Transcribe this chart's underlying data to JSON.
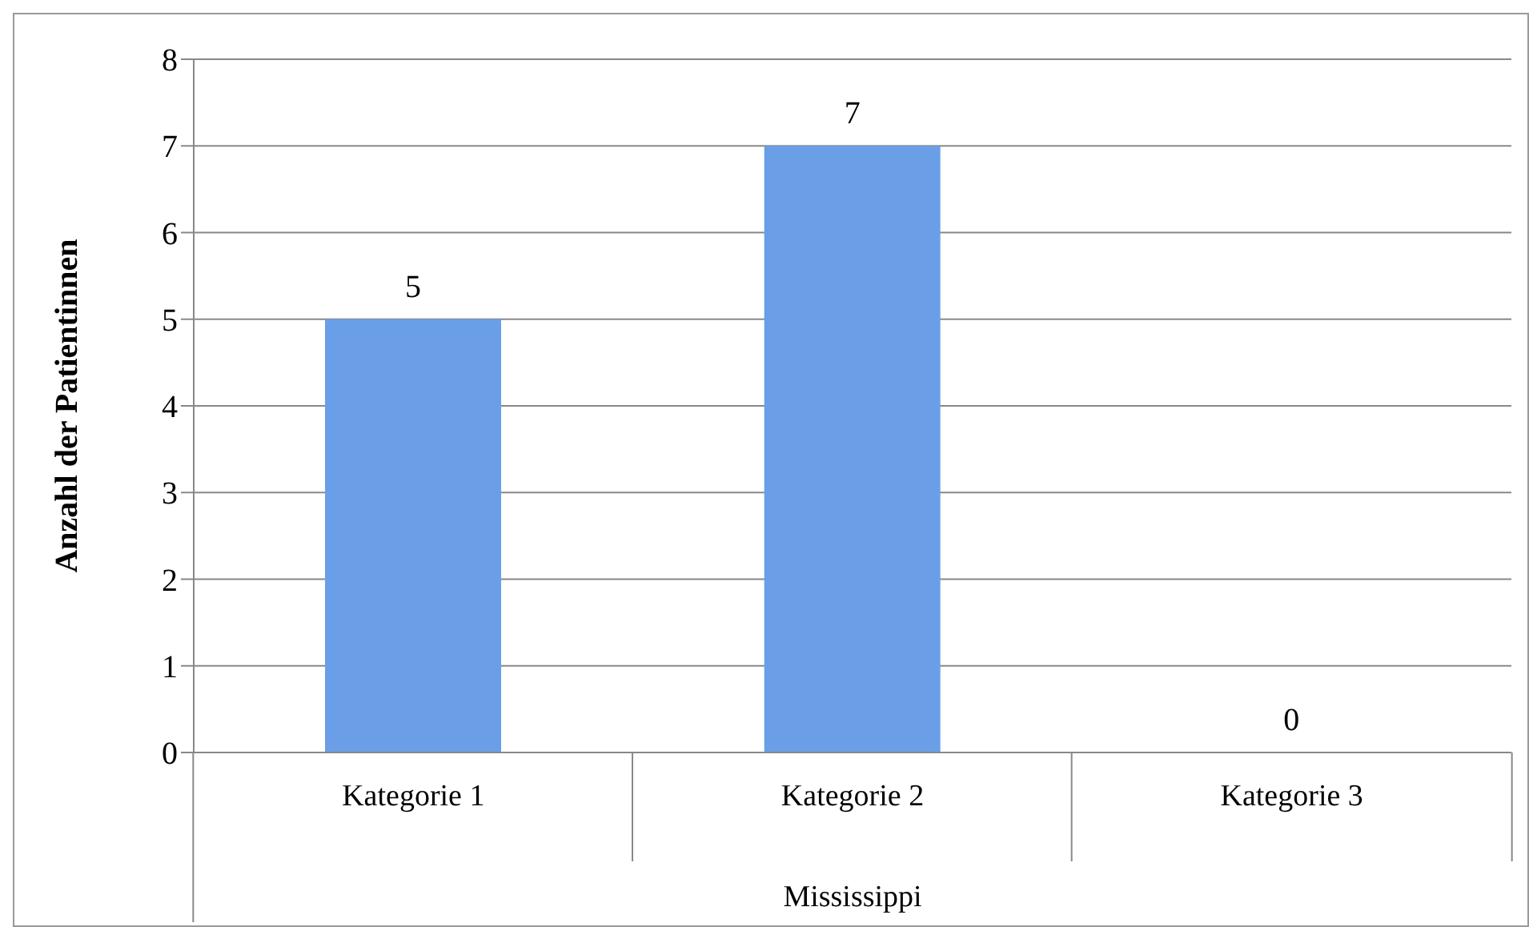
{
  "chart_data": {
    "type": "bar",
    "categories": [
      "Kategorie 1",
      "Kategorie 2",
      "Kategorie 3"
    ],
    "values": [
      5,
      7,
      0
    ],
    "color": "#6a9fe8",
    "ylim": [
      0,
      8
    ],
    "yticks": [
      0,
      1,
      2,
      3,
      4,
      5,
      6,
      7,
      8
    ],
    "grid": "y",
    "data_labels": true,
    "ylabel": "Anzahl der Patientinnen",
    "xlabel": "Mississippi"
  }
}
